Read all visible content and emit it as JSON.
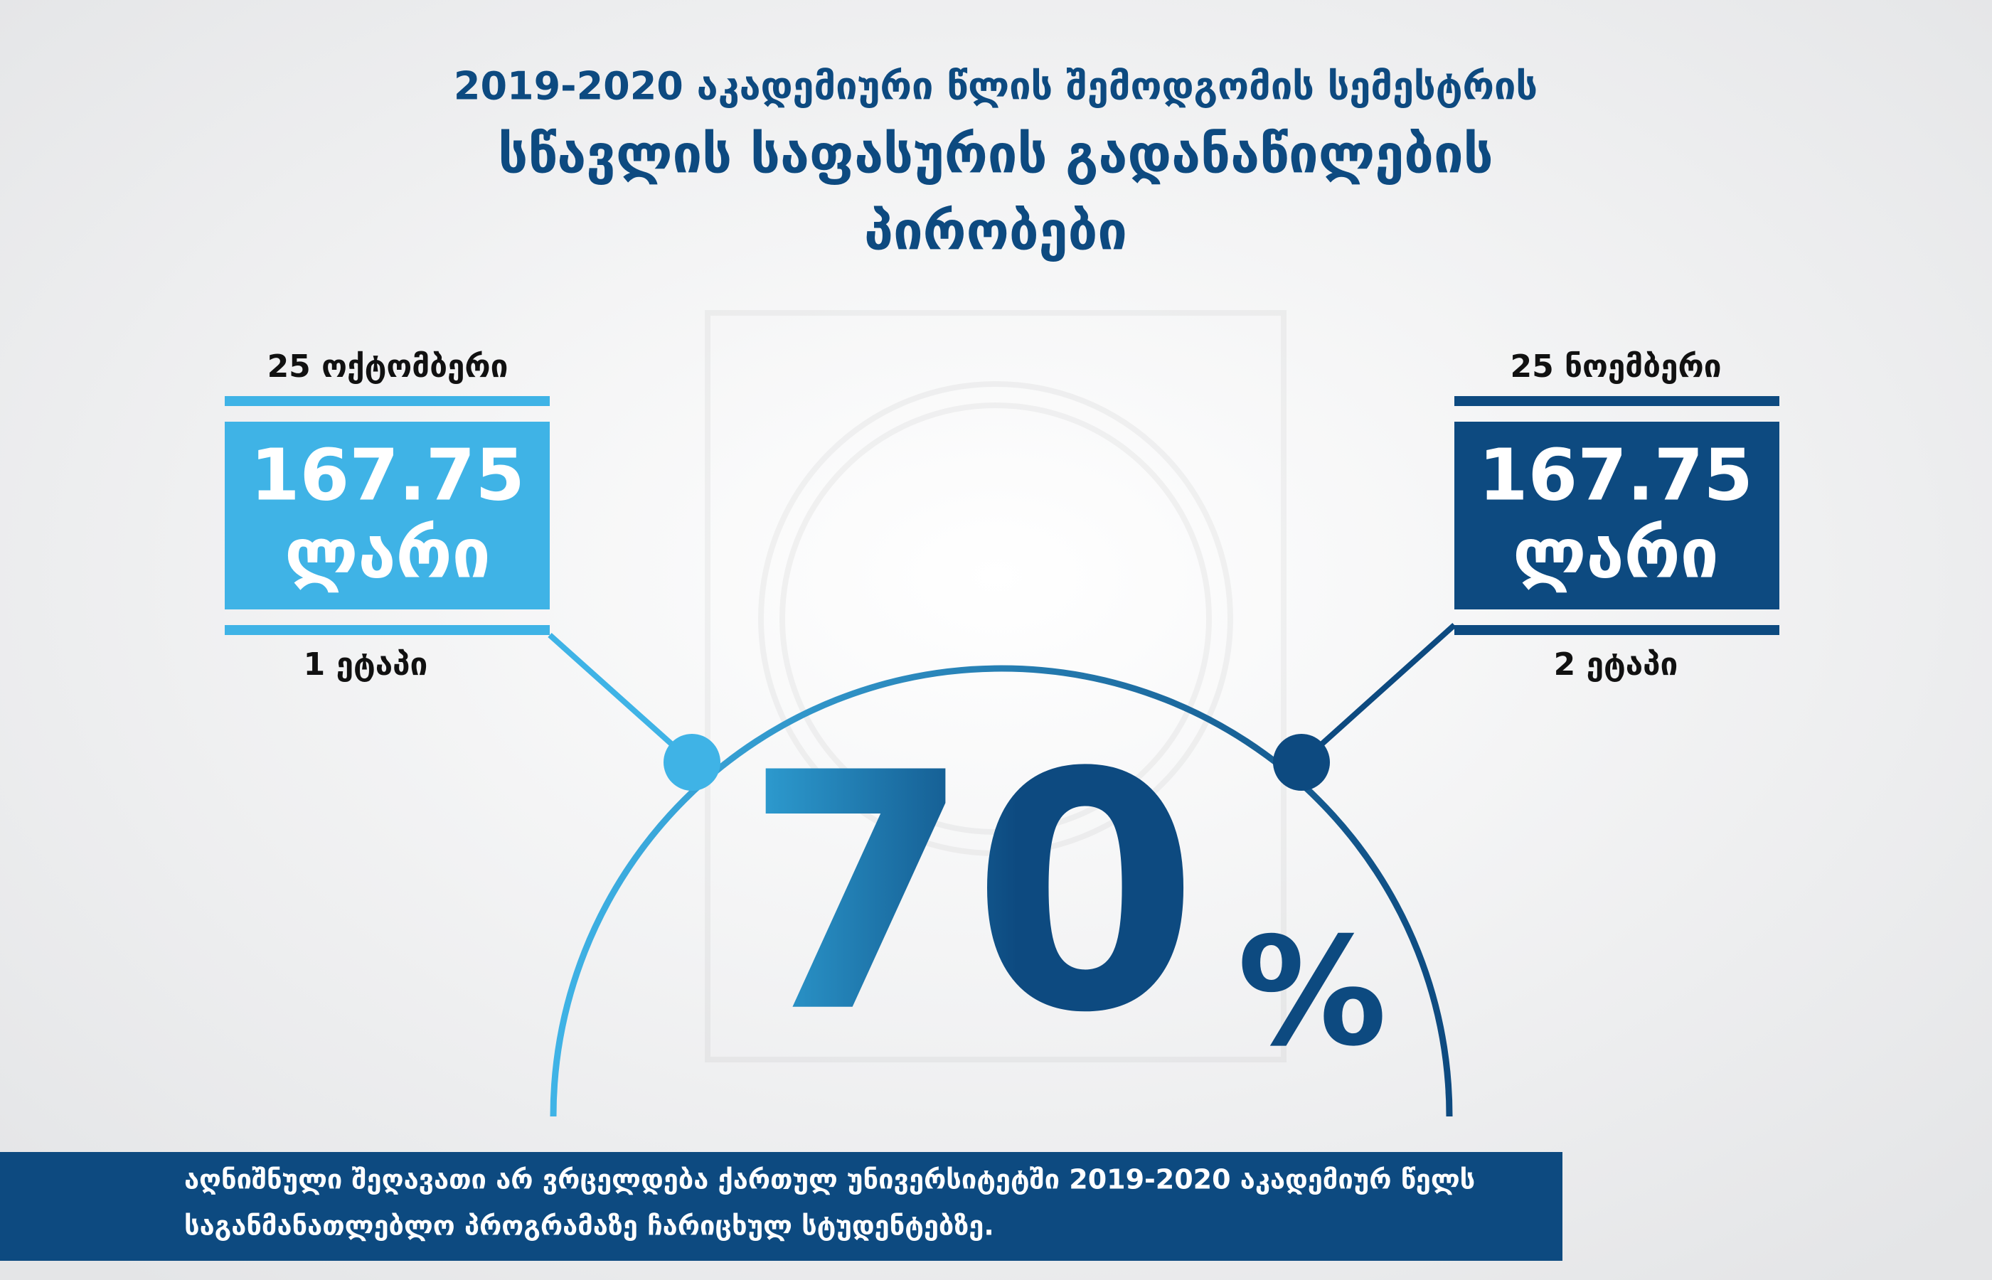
{
  "title": {
    "line1": "2019-2020 აკადემიური წლის შემოდგომის სემესტრის",
    "line2": "სწავლის საფასურის გადანაწილების",
    "line3": "პირობები"
  },
  "stages": [
    {
      "date": "25 ოქტომბერი",
      "amount": "167.75",
      "currency": "ლარი",
      "stage": "1 ეტაპი"
    },
    {
      "date": "25 ნოემბერი",
      "amount": "167.75",
      "currency": "ლარი",
      "stage": "2 ეტაპი"
    }
  ],
  "discount": {
    "number": "70",
    "sign": "%"
  },
  "footer": {
    "line1": "აღნიშნული შეღავათი არ ვრცელდება ქართულ უნივერსიტეტში 2019-2020 აკადემიურ წელს",
    "line2": "საგანმანათლებლო პროგრამაზე ჩარიცხულ სტუდენტებზე."
  }
}
